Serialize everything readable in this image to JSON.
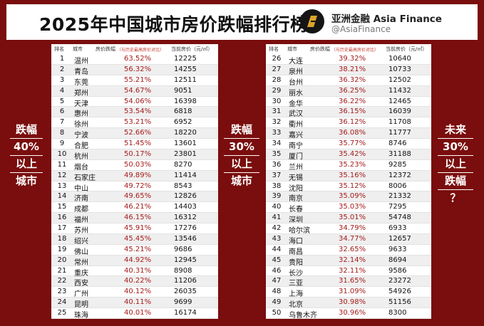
{
  "title": "2025年中国城市房价跌幅排行榜",
  "brand": {
    "name": "亚洲金融 Asia Finance",
    "handle": "@AsiaFinance",
    "logo_icon": "asia-finance-logo-icon"
  },
  "colors": {
    "background": "#7a0d0d",
    "drop_text": "#a61b1b"
  },
  "table_headers": {
    "rank": "排名",
    "city": "城市",
    "drop": "房价跌幅",
    "note": "（与历史最高房价对比）",
    "price": "当前房价（元/㎡）"
  },
  "side_labels": {
    "left": [
      "跌幅",
      "40%",
      "以上",
      "城市"
    ],
    "middle": [
      "跌幅",
      "30%",
      "以上",
      "城市"
    ],
    "right": [
      "未来",
      "30%",
      "以上",
      "跌幅",
      "？"
    ]
  },
  "chart_data": {
    "type": "table",
    "title": "2025年中国城市房价跌幅排行榜",
    "columns": [
      "排名",
      "城市",
      "房价跌幅",
      "当前房价（元/㎡）"
    ],
    "left_rows": [
      {
        "rank": "1",
        "city": "温州",
        "drop": "63.52%",
        "price": "12225"
      },
      {
        "rank": "2",
        "city": "青岛",
        "drop": "56.32%",
        "price": "14255"
      },
      {
        "rank": "3",
        "city": "东莞",
        "drop": "55.21%",
        "price": "12511"
      },
      {
        "rank": "4",
        "city": "郑州",
        "drop": "54.67%",
        "price": "9051"
      },
      {
        "rank": "5",
        "city": "天津",
        "drop": "54.06%",
        "price": "16398"
      },
      {
        "rank": "6",
        "city": "惠州",
        "drop": "53.54%",
        "price": "6818"
      },
      {
        "rank": "7",
        "city": "徐州",
        "drop": "53.21%",
        "price": "6952"
      },
      {
        "rank": "8",
        "city": "宁波",
        "drop": "52.66%",
        "price": "18220"
      },
      {
        "rank": "9",
        "city": "合肥",
        "drop": "51.45%",
        "price": "13601"
      },
      {
        "rank": "10",
        "city": "杭州",
        "drop": "50.17%",
        "price": "23801"
      },
      {
        "rank": "11",
        "city": "烟台",
        "drop": "50.03%",
        "price": "8270"
      },
      {
        "rank": "12",
        "city": "石家庄",
        "drop": "49.89%",
        "price": "11414"
      },
      {
        "rank": "13",
        "city": "中山",
        "drop": "49.72%",
        "price": "8543"
      },
      {
        "rank": "14",
        "city": "济南",
        "drop": "49.65%",
        "price": "12826"
      },
      {
        "rank": "15",
        "city": "成都",
        "drop": "46.21%",
        "price": "14403"
      },
      {
        "rank": "16",
        "city": "福州",
        "drop": "46.15%",
        "price": "16312"
      },
      {
        "rank": "17",
        "city": "苏州",
        "drop": "45.91%",
        "price": "17276"
      },
      {
        "rank": "18",
        "city": "绍兴",
        "drop": "45.45%",
        "price": "13546"
      },
      {
        "rank": "19",
        "city": "佛山",
        "drop": "45.21%",
        "price": "9686"
      },
      {
        "rank": "20",
        "city": "常州",
        "drop": "44.92%",
        "price": "12945"
      },
      {
        "rank": "21",
        "city": "重庆",
        "drop": "40.31%",
        "price": "8908"
      },
      {
        "rank": "22",
        "city": "西安",
        "drop": "40.22%",
        "price": "11206"
      },
      {
        "rank": "23",
        "city": "广州",
        "drop": "40.12%",
        "price": "26035"
      },
      {
        "rank": "24",
        "city": "昆明",
        "drop": "40.11%",
        "price": "9699"
      },
      {
        "rank": "25",
        "city": "珠海",
        "drop": "40.01%",
        "price": "16174"
      }
    ],
    "right_rows": [
      {
        "rank": "26",
        "city": "大连",
        "drop": "39.32%",
        "price": "10640"
      },
      {
        "rank": "27",
        "city": "泉州",
        "drop": "38.21%",
        "price": "10733"
      },
      {
        "rank": "28",
        "city": "台州",
        "drop": "36.32%",
        "price": "12502"
      },
      {
        "rank": "29",
        "city": "丽水",
        "drop": "36.25%",
        "price": "11432"
      },
      {
        "rank": "30",
        "city": "金华",
        "drop": "36.22%",
        "price": "12465"
      },
      {
        "rank": "31",
        "city": "武汉",
        "drop": "36.15%",
        "price": "16039"
      },
      {
        "rank": "32",
        "city": "衢州",
        "drop": "36.12%",
        "price": "11708"
      },
      {
        "rank": "33",
        "city": "嘉兴",
        "drop": "36.08%",
        "price": "11777"
      },
      {
        "rank": "34",
        "city": "南宁",
        "drop": "35.77%",
        "price": "8746"
      },
      {
        "rank": "35",
        "city": "厦门",
        "drop": "35.42%",
        "price": "31188"
      },
      {
        "rank": "36",
        "city": "兰州",
        "drop": "35.23%",
        "price": "9285"
      },
      {
        "rank": "37",
        "city": "无锡",
        "drop": "35.16%",
        "price": "12372"
      },
      {
        "rank": "38",
        "city": "沈阳",
        "drop": "35.12%",
        "price": "8006"
      },
      {
        "rank": "39",
        "city": "南京",
        "drop": "35.09%",
        "price": "21332"
      },
      {
        "rank": "40",
        "city": "长春",
        "drop": "35.03%",
        "price": "7295"
      },
      {
        "rank": "41",
        "city": "深圳",
        "drop": "35.01%",
        "price": "54748"
      },
      {
        "rank": "42",
        "city": "哈尔滨",
        "drop": "34.79%",
        "price": "6933"
      },
      {
        "rank": "43",
        "city": "海口",
        "drop": "34.77%",
        "price": "12657"
      },
      {
        "rank": "44",
        "city": "南昌",
        "drop": "32.65%",
        "price": "9633"
      },
      {
        "rank": "45",
        "city": "贵阳",
        "drop": "32.14%",
        "price": "8694"
      },
      {
        "rank": "46",
        "city": "长沙",
        "drop": "32.11%",
        "price": "9586"
      },
      {
        "rank": "47",
        "city": "三亚",
        "drop": "31.65%",
        "price": "23272"
      },
      {
        "rank": "48",
        "city": "上海",
        "drop": "31.09%",
        "price": "54926"
      },
      {
        "rank": "49",
        "city": "北京",
        "drop": "30.98%",
        "price": "51156"
      },
      {
        "rank": "50",
        "city": "乌鲁木齐",
        "drop": "30.96%",
        "price": "8300"
      }
    ]
  }
}
